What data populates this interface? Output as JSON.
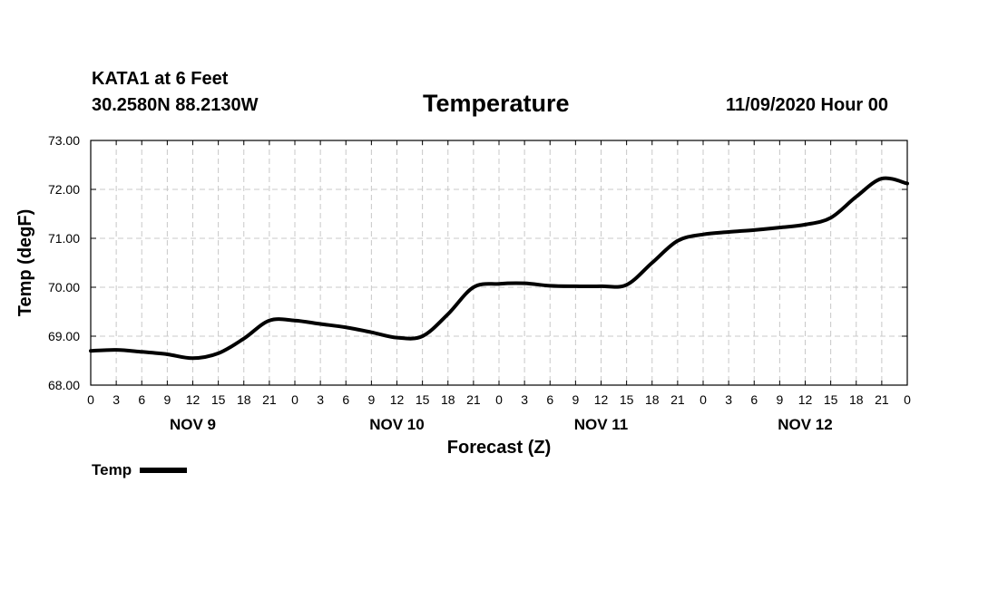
{
  "header": {
    "station": "KATA1 at 6 Feet",
    "coords": "30.2580N 88.2130W",
    "date": "11/09/2020 Hour 00"
  },
  "chart_data": {
    "type": "line",
    "title": "Temperature",
    "xlabel": "Forecast (Z)",
    "ylabel": "Temp (degF)",
    "xlim": [
      0,
      96
    ],
    "ylim": [
      68.0,
      73.0
    ],
    "grid": true,
    "legend_position": "bottom-left",
    "yticks": [
      "68.00",
      "69.00",
      "70.00",
      "71.00",
      "72.00",
      "73.00"
    ],
    "yvalues": [
      68,
      69,
      70,
      71,
      72,
      73
    ],
    "xtick_labels": [
      "0",
      "3",
      "6",
      "9",
      "12",
      "15",
      "18",
      "21",
      "0",
      "3",
      "6",
      "9",
      "12",
      "15",
      "18",
      "21",
      "0",
      "3",
      "6",
      "9",
      "12",
      "15",
      "18",
      "21",
      "0",
      "3",
      "6",
      "9",
      "12",
      "15",
      "18",
      "21",
      "0"
    ],
    "day_labels": [
      {
        "label": "NOV 9",
        "hour": 12
      },
      {
        "label": "NOV 10",
        "hour": 36
      },
      {
        "label": "NOV 11",
        "hour": 60
      },
      {
        "label": "NOV 12",
        "hour": 84
      }
    ],
    "series": [
      {
        "name": "Temp",
        "color": "#000000",
        "x": [
          0,
          3,
          6,
          9,
          12,
          15,
          18,
          21,
          24,
          27,
          30,
          33,
          36,
          39,
          42,
          45,
          48,
          51,
          54,
          57,
          60,
          63,
          66,
          69,
          72,
          75,
          78,
          81,
          84,
          87,
          90,
          93,
          96
        ],
        "y": [
          68.7,
          68.72,
          68.68,
          68.63,
          68.55,
          68.65,
          68.95,
          69.32,
          69.32,
          69.25,
          69.18,
          69.08,
          68.97,
          69.0,
          69.45,
          70.0,
          70.07,
          70.08,
          70.03,
          70.02,
          70.02,
          70.05,
          70.5,
          70.95,
          71.08,
          71.13,
          71.17,
          71.22,
          71.28,
          71.42,
          71.85,
          72.22,
          72.12
        ]
      }
    ]
  }
}
